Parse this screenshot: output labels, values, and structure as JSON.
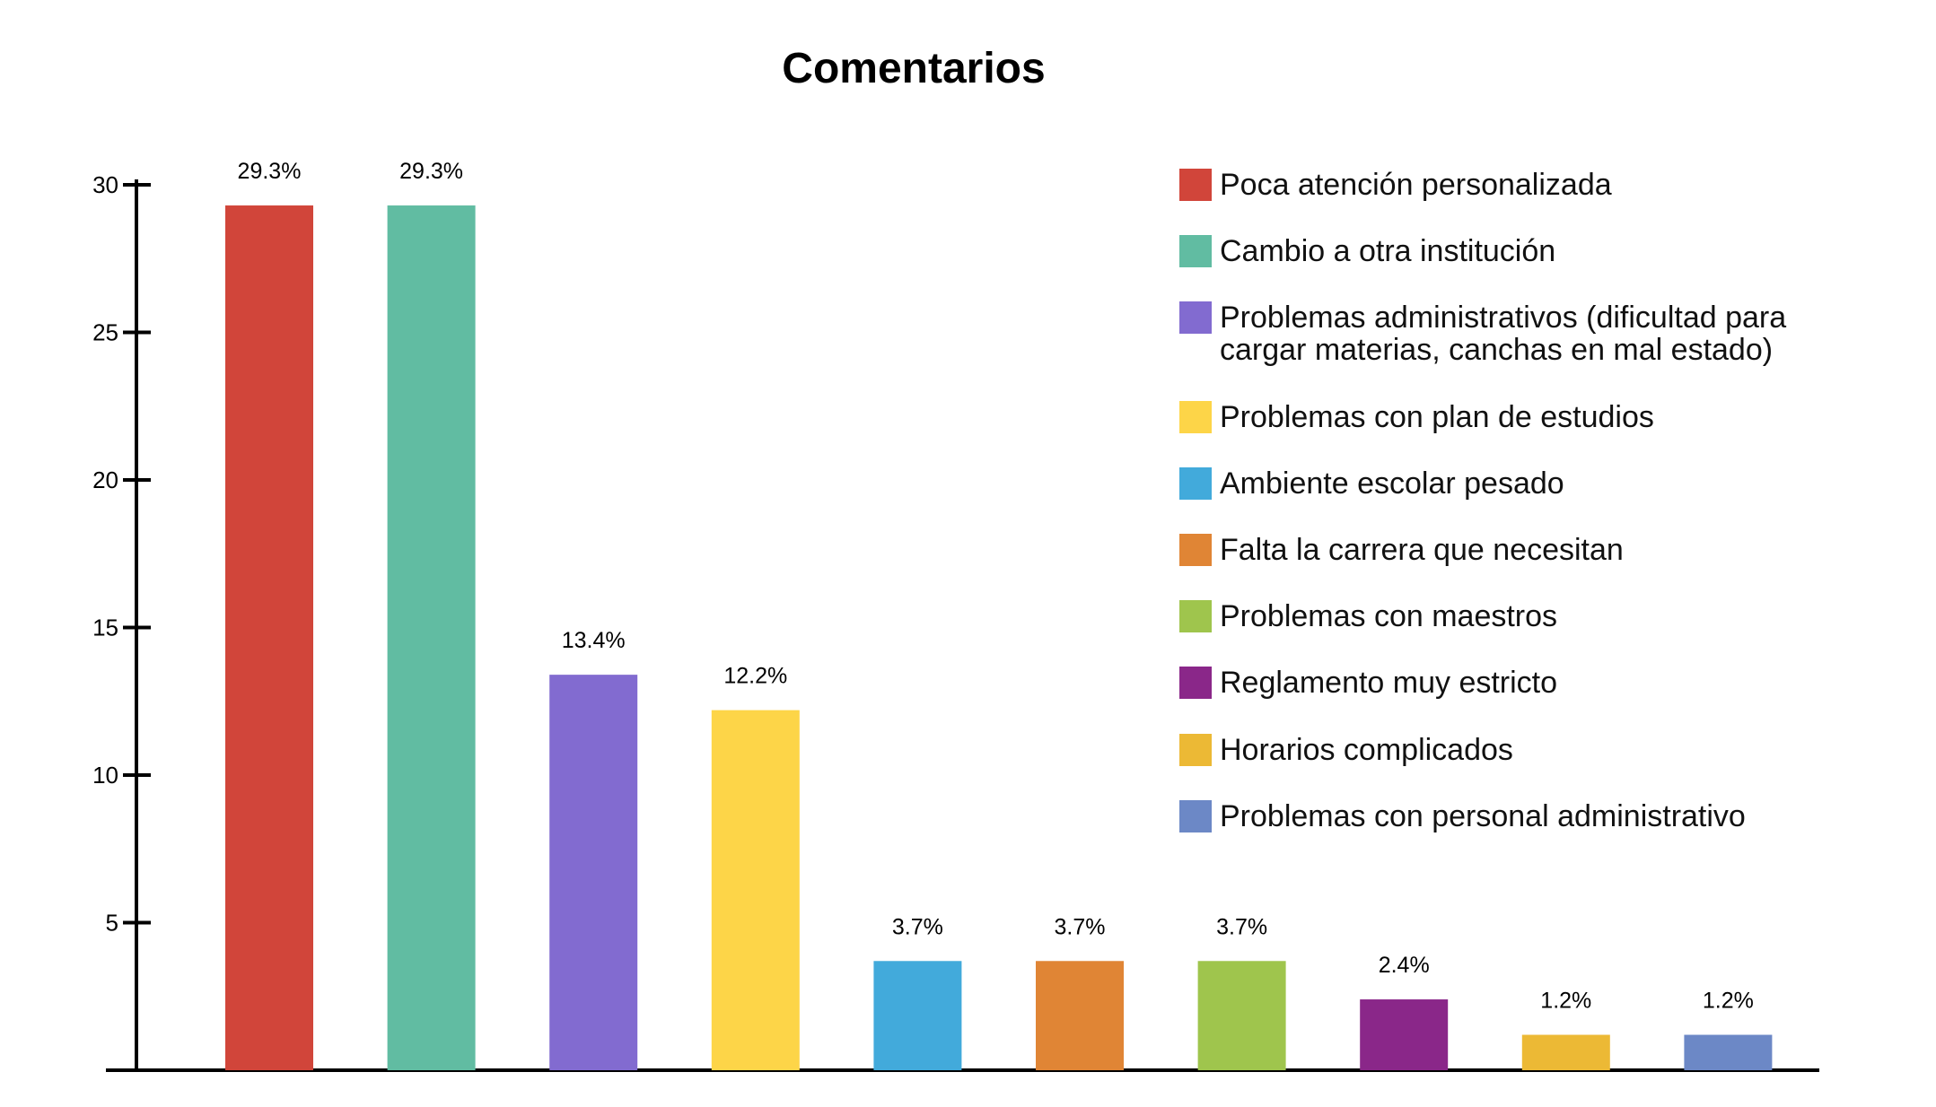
{
  "chart_data": {
    "type": "bar",
    "title": "Comentarios",
    "xlabel": "",
    "ylabel": "",
    "ylim": [
      0,
      30
    ],
    "yticks": [
      5,
      10,
      15,
      20,
      25,
      30
    ],
    "grid": false,
    "legend_position": "top-right",
    "categories": [
      "Poca atención personalizada",
      "Cambio a otra institución",
      "Problemas administrativos (dificultad para cargar materias, canchas en mal estado)",
      "Problemas con plan de estudios",
      "Ambiente escolar pesado",
      "Falta la carrera que necesitan",
      "Problemas con maestros",
      "Reglamento muy estricto",
      "Horarios complicados",
      "Problemas con personal administrativo"
    ],
    "legend_lines": [
      [
        "Poca atención personalizada"
      ],
      [
        "Cambio a otra institución"
      ],
      [
        "Problemas administrativos (dificultad para",
        "cargar materias, canchas en mal estado)"
      ],
      [
        "Problemas con plan de estudios"
      ],
      [
        "Ambiente escolar pesado"
      ],
      [
        "Falta la carrera que necesitan"
      ],
      [
        "Problemas con maestros"
      ],
      [
        "Reglamento muy estricto"
      ],
      [
        "Horarios complicados"
      ],
      [
        "Problemas con personal administrativo"
      ]
    ],
    "values": [
      29.3,
      29.3,
      13.4,
      12.2,
      3.7,
      3.7,
      3.7,
      2.4,
      1.2,
      1.2
    ],
    "data_labels": [
      "29.3%",
      "29.3%",
      "13.4%",
      "12.2%",
      "3.7%",
      "3.7%",
      "3.7%",
      "2.4%",
      "1.2%",
      "1.2%"
    ],
    "colors": [
      "#d1453a",
      "#61bca2",
      "#826bd0",
      "#fdd548",
      "#42aadb",
      "#e08535",
      "#9fc54d",
      "#8a2789",
      "#ecb935",
      "#6c88c6"
    ]
  }
}
